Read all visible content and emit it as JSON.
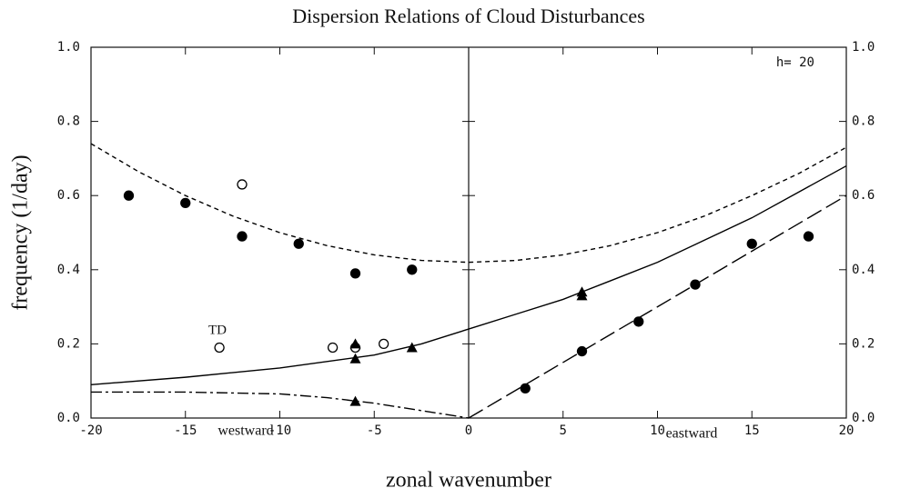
{
  "chart_data": {
    "type": "scatter",
    "title": "Dispersion Relations of Cloud Disturbances",
    "x_label": "zonal wavenumber",
    "y_label": "frequency (1/day)",
    "annotations": [
      "TD",
      "h= 20",
      "westward",
      "eastward"
    ],
    "xlim": [
      -20,
      20
    ],
    "xticks": [
      -20,
      -15,
      -10,
      -5,
      0,
      5,
      10,
      15,
      20
    ],
    "ylim": [
      0,
      1
    ],
    "yticks": [
      {
        "value": 0,
        "label": "0.0"
      },
      {
        "value": 0.2,
        "label": "0.2"
      },
      {
        "value": 0.4,
        "label": "0.4"
      },
      {
        "value": 0.6,
        "label": "0.6"
      },
      {
        "value": 0.8,
        "label": "0.8"
      },
      {
        "value": 1,
        "label": "1.0"
      }
    ],
    "y2lim": [
      0,
      1
    ],
    "y2ticks": [
      {
        "value": 0,
        "label": "0.0"
      },
      {
        "value": 0.2,
        "label": "0.2"
      },
      {
        "value": 0.4,
        "label": "0.4"
      },
      {
        "value": 0.6,
        "label": "0.6"
      },
      {
        "value": 0.8,
        "label": "0.8"
      },
      {
        "value": 1,
        "label": "1.0"
      }
    ],
    "series": [
      {
        "kind": "line",
        "style": "dashed",
        "color": "#000000",
        "x": [
          -20,
          -17.5,
          -15,
          -12.5,
          -10,
          -7.5,
          -5,
          -2.5,
          0,
          2.5,
          5,
          7.5,
          10,
          12.5,
          15,
          17.5,
          20
        ],
        "y": [
          0.74,
          0.665,
          0.6,
          0.545,
          0.5,
          0.465,
          0.44,
          0.425,
          0.42,
          0.425,
          0.44,
          0.465,
          0.5,
          0.545,
          0.6,
          0.66,
          0.73
        ]
      },
      {
        "kind": "line",
        "style": "solid",
        "color": "#000000",
        "x": [
          -20,
          -15,
          -10,
          -5,
          -2.5,
          0,
          2.5,
          5,
          7.5,
          10,
          12.5,
          15,
          17.5,
          20
        ],
        "y": [
          0.09,
          0.11,
          0.135,
          0.17,
          0.2,
          0.24,
          0.28,
          0.32,
          0.37,
          0.42,
          0.48,
          0.54,
          0.61,
          0.68
        ]
      },
      {
        "kind": "line",
        "style": "dashdot",
        "color": "#000000",
        "x": [
          -20,
          -15,
          -10,
          -7.5,
          -5,
          -2.5,
          0
        ],
        "y": [
          0.07,
          0.07,
          0.065,
          0.055,
          0.04,
          0.02,
          0
        ]
      },
      {
        "kind": "line",
        "style": "longdash",
        "color": "#000000",
        "x": [
          0,
          5,
          10,
          15,
          20
        ],
        "y": [
          0,
          0.15,
          0.3,
          0.45,
          0.6
        ]
      },
      {
        "kind": "points",
        "marker": "filled-circle",
        "color": "#000000",
        "x": [
          -18,
          -15,
          -12,
          -9,
          -6,
          -3,
          3,
          6,
          9,
          12,
          15,
          18
        ],
        "y": [
          0.6,
          0.58,
          0.49,
          0.47,
          0.39,
          0.4,
          0.08,
          0.18,
          0.26,
          0.36,
          0.47,
          0.49
        ]
      },
      {
        "kind": "points",
        "marker": "open-circle",
        "color": "#000000",
        "x": [
          -12,
          -13.2,
          -7.2,
          -6,
          -4.5
        ],
        "y": [
          0.63,
          0.19,
          0.19,
          0.19,
          0.2
        ]
      },
      {
        "kind": "points",
        "marker": "triangle",
        "color": "#000000",
        "x": [
          -6,
          -6,
          -3,
          -6,
          6,
          6
        ],
        "y": [
          0.2,
          0.16,
          0.19,
          0.045,
          0.34,
          0.33
        ]
      }
    ]
  }
}
